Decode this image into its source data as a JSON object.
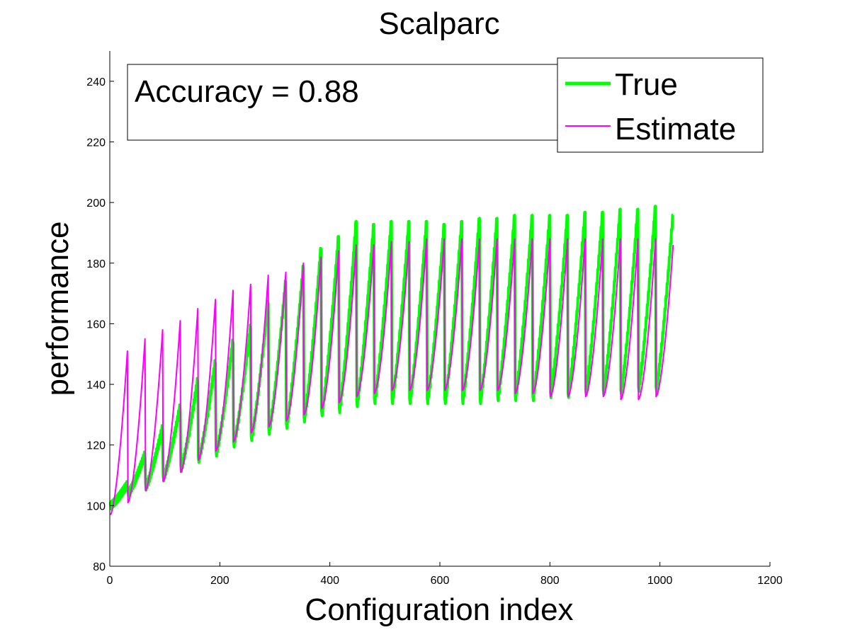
{
  "chart_data": {
    "type": "line",
    "title": "Scalparc",
    "xlabel": "Configuration index",
    "ylabel": "performance",
    "xlim": [
      0,
      1200
    ],
    "ylim": [
      80,
      250
    ],
    "xticks": [
      0,
      200,
      400,
      600,
      800,
      1000,
      1200
    ],
    "yticks": [
      80,
      100,
      120,
      140,
      160,
      180,
      200,
      220,
      240
    ],
    "grid": false,
    "legend_position": "top-right",
    "annotation": "Accuracy = 0.88",
    "n_points": 1024,
    "cycle_length": 32,
    "series": [
      {
        "name": "True",
        "color": "#00ff00",
        "cycle_start_values": [
          100,
          104,
          106,
          109,
          112,
          115,
          117,
          120,
          122,
          124,
          126,
          128,
          130,
          131,
          133,
          134,
          134,
          134,
          134,
          134,
          134,
          134,
          135,
          135,
          135,
          136,
          136,
          137,
          137,
          137,
          138,
          138
        ],
        "cycle_peak_values": [
          107,
          117,
          126,
          133,
          142,
          148,
          155,
          160,
          168,
          175,
          180,
          186,
          190,
          195,
          194,
          195,
          195,
          195,
          194,
          195,
          196,
          196,
          197,
          197,
          197,
          197,
          198,
          198,
          199,
          199,
          200,
          197
        ]
      },
      {
        "name": "Estimate",
        "color": "#ff00ff",
        "cycle_start_values": [
          97,
          101,
          105,
          108,
          111,
          115,
          118,
          121,
          124,
          126,
          128,
          130,
          132,
          134,
          136,
          137,
          138,
          138,
          138,
          138,
          138,
          138,
          138,
          137,
          137,
          136,
          136,
          136,
          136,
          135,
          135,
          136
        ],
        "cycle_peak_values": [
          151,
          155,
          158,
          161,
          165,
          168,
          171,
          173,
          176,
          177,
          180,
          182,
          184,
          186,
          186,
          187,
          187,
          188,
          188,
          188,
          188,
          188,
          188,
          188,
          188,
          188,
          188,
          188,
          188,
          188,
          188,
          186
        ]
      }
    ]
  }
}
